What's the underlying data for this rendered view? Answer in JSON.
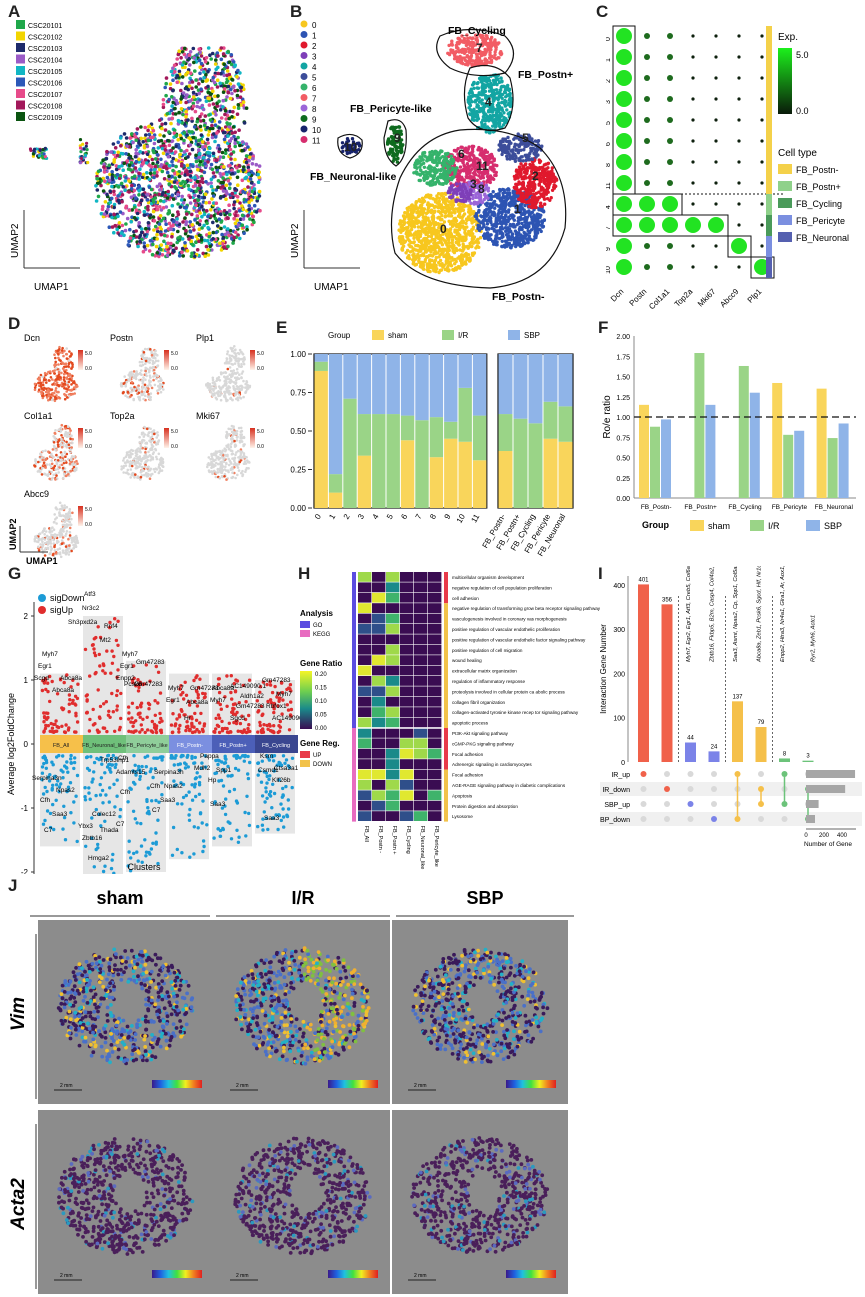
{
  "panels": {
    "A": {
      "label": "A",
      "legend": [
        "CSC20101",
        "CSC20102",
        "CSC20103",
        "CSC20104",
        "CSC20105",
        "CSC20106",
        "CSC20107",
        "CSC20108",
        "CSC20109"
      ],
      "legend_colors": [
        "#1fa74a",
        "#f2d500",
        "#1d2a6b",
        "#9b5bc7",
        "#11b6c4",
        "#2c58b8",
        "#e74b8a",
        "#a2185a",
        "#0a5410"
      ],
      "xlab": "UMAP1",
      "ylab": "UMAP2"
    },
    "B": {
      "label": "B",
      "legend": [
        "0",
        "1",
        "2",
        "3",
        "4",
        "5",
        "6",
        "7",
        "8",
        "9",
        "10",
        "11"
      ],
      "legend_colors": [
        "#f7c71e",
        "#2d54b3",
        "#e0192d",
        "#7e3fb8",
        "#13a5a3",
        "#3c4d9a",
        "#35b36b",
        "#f25c64",
        "#9b65d8",
        "#0f6b1f",
        "#17236b",
        "#d62d6e"
      ],
      "cluster_labels": [
        "FB_Cycling",
        "FB_Postn+",
        "FB_Pericyte-like",
        "FB_Neuronal-like",
        "FB_Postn-"
      ],
      "numbers": [
        "7",
        "4",
        "5",
        "6",
        "11",
        "2",
        "3",
        "8",
        "1",
        "0",
        "9",
        "10"
      ],
      "xlab": "UMAP1",
      "ylab": "UMAP2"
    },
    "C": {
      "label": "C",
      "legend_title": "Exp.",
      "scale_max": "5.0",
      "scale_min": "0.0",
      "celltype_title": "Cell type",
      "celltypes": [
        "FB_Postn-",
        "FB_Postn+",
        "FB_Cycling",
        "FB_Pericyte",
        "FB_Neuronal"
      ],
      "celltype_colors": [
        "#f4d14a",
        "#8fd18a",
        "#4a9a5a",
        "#7b8fe0",
        "#5560b0"
      ],
      "genes": [
        "Dcn",
        "Postn",
        "Col1a1",
        "Top2a",
        "Mki67",
        "Abcc9",
        "Plp1"
      ],
      "rows": [
        "0",
        "1",
        "2",
        "3",
        "5",
        "6",
        "8",
        "11",
        "4",
        "7",
        "9",
        "10"
      ]
    },
    "D": {
      "label": "D",
      "genes": [
        "Dcn",
        "Postn",
        "Plp1",
        "Col1a1",
        "Top2a",
        "Mki67",
        "Abcc9"
      ],
      "scale_hi": "5.0",
      "scale_lo": "0.0",
      "xlab": "UMAP1",
      "ylab": "UMAP2"
    },
    "E": {
      "label": "E",
      "group_title": "Group",
      "groups": [
        "sham",
        "I/R",
        "SBP"
      ],
      "group_colors": [
        "#f9d55b",
        "#9ad487",
        "#8fb4e8"
      ]
    },
    "F": {
      "label": "F",
      "ylab": "Ro/e ratio",
      "group_title": "Group",
      "groups": [
        "sham",
        "I/R",
        "SBP"
      ]
    },
    "G": {
      "label": "G",
      "legend": [
        "sigDown",
        "sigUp"
      ],
      "legend_colors": [
        "#1c9bd6",
        "#e02d2d"
      ],
      "ylab": "Average log2FoldChange",
      "xlab": "Clusters",
      "clusters": [
        "FB_All",
        "FB_Neuronal_like",
        "FB_Pericyte_like",
        "FB_Postn-",
        "FB_Postn+",
        "FB_Cycling"
      ],
      "cluster_colors": [
        "#f6c04a",
        "#6fc07a",
        "#8fce9a",
        "#7b8fe0",
        "#4c5fb8",
        "#3a4690"
      ],
      "yticks": [
        "2",
        "1",
        "0",
        "-1",
        "-2"
      ],
      "up_genes": [
        {
          "t": "Atf3"
        },
        {
          "t": "Nr3c2"
        },
        {
          "t": "Sh3pxd2a"
        },
        {
          "t": "Rnf4"
        },
        {
          "t": "Mt2"
        },
        {
          "t": "Myh7"
        },
        {
          "t": "Egr1"
        },
        {
          "t": "Abca8a"
        },
        {
          "t": "Scgd"
        },
        {
          "t": "Abca8a"
        },
        {
          "t": "Myh7"
        },
        {
          "t": "Egr1"
        },
        {
          "t": "Enpp2"
        },
        {
          "t": "Gm47283"
        },
        {
          "t": "Pcsk6"
        },
        {
          "t": "Gm47283"
        },
        {
          "t": "Myh7"
        },
        {
          "t": "Egr1"
        },
        {
          "t": "Abca8a"
        },
        {
          "t": "Gm47283"
        },
        {
          "t": "Hr"
        },
        {
          "t": "Abca8a"
        },
        {
          "t": "Myh7"
        },
        {
          "t": "AC149090.1"
        },
        {
          "t": "Gm47283"
        },
        {
          "t": "Aldh1a2"
        },
        {
          "t": "Sgcd"
        },
        {
          "t": "Gm47283"
        },
        {
          "t": "Myh7"
        },
        {
          "t": "Rbfox1"
        },
        {
          "t": "AC149090.1"
        }
      ],
      "down_genes": [
        {
          "t": "Serpina3n"
        },
        {
          "t": "Npas2"
        },
        {
          "t": "Cfh"
        },
        {
          "t": "Saa3"
        },
        {
          "t": "C7"
        },
        {
          "t": "Trp53inp1"
        },
        {
          "t": "Colec12"
        },
        {
          "t": "Ybx3"
        },
        {
          "t": "Thada"
        },
        {
          "t": "Zbtb16"
        },
        {
          "t": "Hmga2"
        },
        {
          "t": "Cfh"
        },
        {
          "t": "Adamts15"
        },
        {
          "t": "Cfh"
        },
        {
          "t": "C7"
        },
        {
          "t": "Serpina3h"
        },
        {
          "t": "Cfh"
        },
        {
          "t": "Npas2"
        },
        {
          "t": "Saa3"
        },
        {
          "t": "C7"
        },
        {
          "t": "Pappa"
        },
        {
          "t": "Mdh2"
        },
        {
          "t": "Spp1"
        },
        {
          "t": "Hp"
        },
        {
          "t": "Saa3"
        },
        {
          "t": "Ksrn"
        },
        {
          "t": "Csmd1"
        },
        {
          "t": "Ctsa3a1"
        },
        {
          "t": "Klf26b"
        },
        {
          "t": "Saa3"
        }
      ]
    },
    "H": {
      "label": "H",
      "analysis_title": "Analysis",
      "analysis": [
        "GO",
        "KEGG"
      ],
      "analysis_colors": [
        "#5b4de0",
        "#e86bc0"
      ],
      "ratio_title": "Gene Ratio",
      "ratio_ticks": [
        "0.20",
        "0.15",
        "0.10",
        "0.05",
        "0.00"
      ],
      "reg_title": "Gene Reg.",
      "reg": [
        "UP",
        "DOWN"
      ],
      "reg_colors": [
        "#e83a4a",
        "#f2c24a"
      ],
      "terms": [
        "multicellular organism development",
        "negative regulation of cell population proliferation",
        "cell adhesion",
        "negative regulation of transforming grow beta receptor signaling pathway",
        "vasculogenesis involved in coronary vas morphogenesis",
        "positive regulation of vascular endothelic proliferation",
        "positive regulation of vascular endothelic factor signaling pathway",
        "positive regulation of cell migration",
        "wound healing",
        "extracellular matrix organization",
        "regulation of inflammatory response",
        "proteolysis involved in cellular protein ca abolic process",
        "collagen fibril organization",
        "collagen-activated tyrosine kinase recep tor signaling pathway",
        "apoptotic process",
        "PI3K-Akt signaling pathway",
        "cGMP-PKG signaling pathway",
        "Focal adhesion",
        "Adrenergic signaling in cardiomyocytes",
        "Focal adhesion",
        "AGE-RAGE signaling pathway in diabetic complications",
        "Apoptosis",
        "Protein digestion and absorption",
        "Lysosome"
      ],
      "columns": [
        "FB_All",
        "FB_Postn -",
        "FB_Postn +",
        "FB_Cycling",
        "FB_Neuronal_like",
        "FB_Pericyte_like"
      ]
    },
    "I": {
      "label": "I",
      "ylab": "Interaction Gene Number",
      "yticks": [
        "400",
        "300",
        "200",
        "100",
        "0"
      ],
      "sets": [
        "IR_up",
        "IR_down",
        "SBP_up",
        "SBP_down"
      ],
      "xlab2": "Number of Gene",
      "xticks2": [
        "0",
        "200",
        "400"
      ],
      "gene_lists": [
        "Myh7, Egr2, Egr1, Atf3, Creb5, Col6a6, Nfib",
        "Zbtb16, Fkbp5, B2m, Casp4, Col4a2, Lpl",
        "Saa3, Asmt, Npas2, Cp, Spp1, Col5a1",
        "Abca8a, Zeb1, Pcsk6, Sgcd, Hlf, Nr1d2",
        "Enpp2, Htra3, Nr4a1, Glra1, Ar, Aox1, Itmmt",
        "Ryr2, Myh6, Actc1"
      ]
    },
    "J": {
      "label": "J",
      "conditions": [
        "sham",
        "I/R",
        "SBP"
      ],
      "genes": [
        "Vim",
        "Acta2"
      ],
      "scalebar": "2 mm"
    }
  },
  "chart_data": [
    {
      "type": "bar",
      "title": "Panel E - cluster composition by group",
      "categories": [
        "0",
        "1",
        "2",
        "3",
        "4",
        "5",
        "6",
        "7",
        "8",
        "9",
        "10",
        "11"
      ],
      "series": [
        {
          "name": "sham",
          "values": [
            0.89,
            0.1,
            0.0,
            0.34,
            0.0,
            0.0,
            0.44,
            0.0,
            0.33,
            0.45,
            0.43,
            0.31
          ]
        },
        {
          "name": "I/R",
          "values": [
            0.06,
            0.12,
            0.71,
            0.27,
            0.61,
            0.61,
            0.16,
            0.57,
            0.26,
            0.11,
            0.35,
            0.29
          ]
        },
        {
          "name": "SBP",
          "values": [
            0.05,
            0.78,
            0.29,
            0.39,
            0.39,
            0.39,
            0.4,
            0.43,
            0.41,
            0.44,
            0.22,
            0.4
          ]
        }
      ],
      "categories_b": [
        "FB_Postn-",
        "FB_Postn+",
        "FB_Cycling",
        "FB_Pericyte",
        "FB_Neuronal"
      ],
      "series_b": [
        {
          "name": "sham",
          "values": [
            0.37,
            0.0,
            0.0,
            0.45,
            0.43
          ]
        },
        {
          "name": "I/R",
          "values": [
            0.24,
            0.58,
            0.55,
            0.24,
            0.23
          ]
        },
        {
          "name": "SBP",
          "values": [
            0.39,
            0.42,
            0.45,
            0.31,
            0.34
          ]
        }
      ],
      "yticks": [
        "1.00",
        "0.75",
        "0.50",
        "0.25",
        "0.00"
      ],
      "ylim": [
        0,
        1
      ]
    },
    {
      "type": "bar",
      "title": "Panel F - Ro/e ratio",
      "categories": [
        "FB_Postn-",
        "FB_Postn+",
        "FB_Cycling",
        "FB_Pericyte",
        "FB_Neuronal"
      ],
      "series": [
        {
          "name": "sham",
          "values": [
            1.15,
            0.0,
            0.0,
            1.42,
            1.35
          ]
        },
        {
          "name": "I/R",
          "values": [
            0.88,
            1.79,
            1.63,
            0.78,
            0.74
          ]
        },
        {
          "name": "SBP",
          "values": [
            0.97,
            1.15,
            1.3,
            0.83,
            0.92
          ]
        }
      ],
      "ylabel": "Ro/e ratio",
      "yticks": [
        "2.00",
        "1.75",
        "1.50",
        "1.25",
        "1.00",
        "0.75",
        "0.50",
        "0.25",
        "0.00"
      ],
      "ylim": [
        0,
        2
      ],
      "reference_line": 1.0
    },
    {
      "type": "bar",
      "title": "Panel I - intersection sizes",
      "categories": [
        "IR_up",
        "IR_down",
        "SBP_up",
        "SBP_down",
        "IR_up&SBP_down",
        "IR_down&SBP_up",
        "IR_up&SBP_up",
        "IR_down&SBP_down"
      ],
      "values": [
        401,
        356,
        44,
        24,
        137,
        79,
        8,
        3
      ],
      "labels": [
        "401",
        "356",
        "44",
        "24",
        "137",
        "79",
        "8",
        "3"
      ],
      "colors": [
        "#f0614a",
        "#f0614a",
        "#7b83e8",
        "#7b83e8",
        "#f5c04a",
        "#f5c04a",
        "#6cc37a",
        "#6cc37a"
      ],
      "set_sizes": [
        545,
        435,
        140,
        100
      ],
      "ylim": [
        0,
        420
      ]
    }
  ]
}
